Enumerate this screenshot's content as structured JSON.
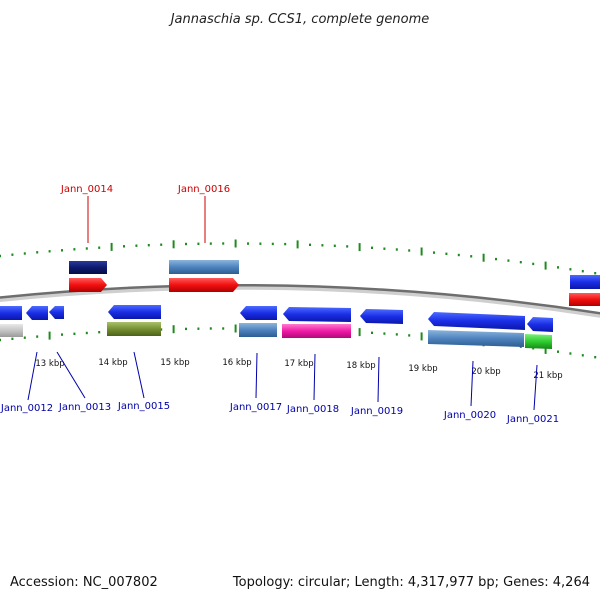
{
  "title": "Jannaschia sp. CCS1, complete genome",
  "footer": {
    "accession": "Accession: NC_007802",
    "summary": "Topology: circular; Length: 4,317,977 bp; Genes: 4,264"
  },
  "colors": {
    "tick": "#1f8a1f",
    "backbone": "#7a7a7a",
    "label_top": "#cc0000",
    "label_bottom": "#0000aa"
  },
  "kbp_labels": [
    "13 kbp",
    "14 kbp",
    "15 kbp",
    "16 kbp",
    "17 kbp",
    "18 kbp",
    "19 kbp",
    "20 kbp",
    "21 kbp"
  ],
  "top_labels": [
    "Jann_0014",
    "Jann_0016"
  ],
  "bottom_labels": [
    "Jann_0012",
    "Jann_0013",
    "Jann_0015",
    "Jann_0017",
    "Jann_0018",
    "Jann_0019",
    "Jann_0020",
    "Jann_0021"
  ]
}
